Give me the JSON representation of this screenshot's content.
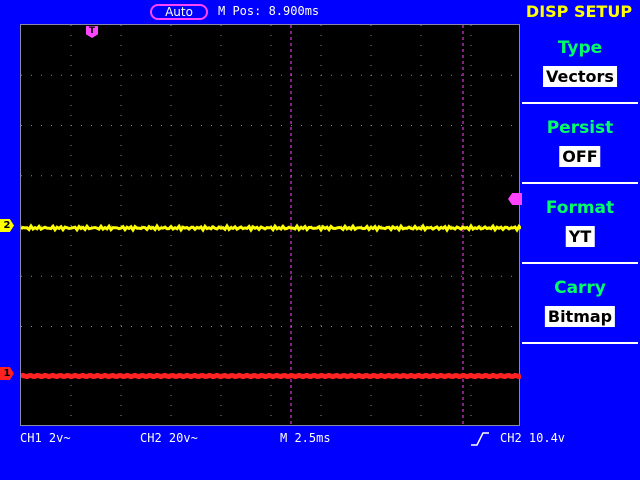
{
  "top": {
    "mode": "Auto",
    "mpos_label": "M Pos: 8.900ms"
  },
  "menu": {
    "title": "DISP SETUP",
    "items": [
      {
        "label": "Type",
        "value": "Vectors"
      },
      {
        "label": "Persist",
        "value": "OFF"
      },
      {
        "label": "Format",
        "value": "YT"
      },
      {
        "label": "Carry",
        "value": "Bitmap"
      }
    ]
  },
  "markers": {
    "ch1": "1",
    "ch2": "2",
    "trigger": "T"
  },
  "status": {
    "ch1_scale": "CH1 2v~",
    "ch2_scale": "CH2 20v~",
    "timebase": "M 2.5ms",
    "trigger_info": "CH2 10.4v"
  },
  "colors": {
    "background": "#0000ff",
    "screen": "#000000",
    "ch1": "#ff2222",
    "ch2": "#ffff00",
    "cursor": "#ff44ff",
    "menu_label": "#00ff66"
  }
}
